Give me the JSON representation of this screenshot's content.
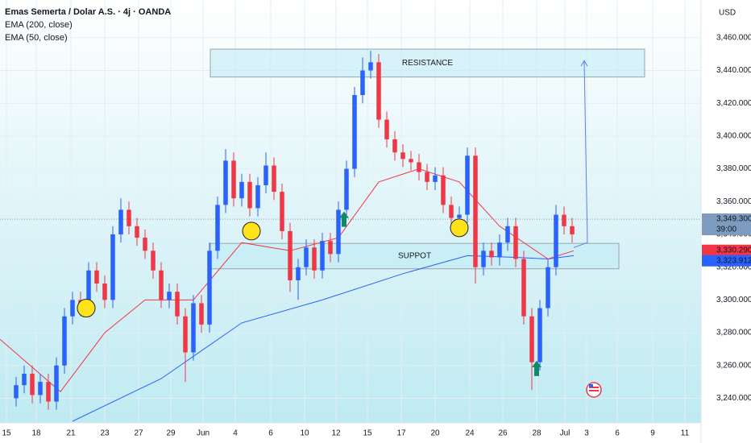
{
  "chart_data": {
    "type": "candlestick",
    "title": "Emas Semerta / Dolar A.S. · 4j · OANDA",
    "currency": "USD",
    "up_color": "#2962ff",
    "down_color": "#f23645",
    "grid": true,
    "xlim": [
      -2,
      85
    ],
    "ylim": [
      3225,
      3483
    ],
    "xticks": [
      {
        "value": -1.2,
        "label": "15"
      },
      {
        "value": 2.5,
        "label": "18"
      },
      {
        "value": 6.8,
        "label": "21"
      },
      {
        "value": 11,
        "label": "23"
      },
      {
        "value": 15.2,
        "label": "27"
      },
      {
        "value": 19.2,
        "label": "29"
      },
      {
        "value": 23.2,
        "label": "Jun"
      },
      {
        "value": 27.2,
        "label": "4"
      },
      {
        "value": 31.6,
        "label": "6"
      },
      {
        "value": 35.8,
        "label": "10"
      },
      {
        "value": 39.7,
        "label": "12"
      },
      {
        "value": 43.6,
        "label": "15"
      },
      {
        "value": 47.8,
        "label": "17"
      },
      {
        "value": 52,
        "label": "20"
      },
      {
        "value": 56.3,
        "label": "24"
      },
      {
        "value": 60.4,
        "label": "26"
      },
      {
        "value": 64.6,
        "label": "28"
      },
      {
        "value": 68.1,
        "label": "Jul"
      },
      {
        "value": 70.8,
        "label": "3"
      },
      {
        "value": 74.6,
        "label": "6"
      },
      {
        "value": 79,
        "label": "9"
      },
      {
        "value": 83,
        "label": "11"
      }
    ],
    "yticks": [
      {
        "value": 3240,
        "label": "3,240.000"
      },
      {
        "value": 3260,
        "label": "3,260.000"
      },
      {
        "value": 3280,
        "label": "3,280.000"
      },
      {
        "value": 3300,
        "label": "3,300.000"
      },
      {
        "value": 3320,
        "label": "3,320.000"
      },
      {
        "value": 3340,
        "label": "3,340.000"
      },
      {
        "value": 3360,
        "label": "3,360.000"
      },
      {
        "value": 3380,
        "label": "3,380.000"
      },
      {
        "value": 3400,
        "label": "3,400.000"
      },
      {
        "value": 3420,
        "label": "3,420.000"
      },
      {
        "value": 3440,
        "label": "3,440.000"
      },
      {
        "value": 3460,
        "label": "3,460.000"
      }
    ],
    "candles": {
      "x": [
        0,
        1,
        2,
        3,
        4,
        5,
        6,
        7,
        8,
        9,
        10,
        11,
        12,
        13,
        14,
        15,
        16,
        17,
        18,
        19,
        20,
        21,
        22,
        23,
        24,
        25,
        26,
        27,
        28,
        29,
        30,
        31,
        32,
        33,
        34,
        35,
        36,
        37,
        38,
        39,
        40,
        41,
        42,
        43,
        44,
        45,
        46,
        47,
        48,
        49,
        50,
        51,
        52,
        53,
        54,
        55,
        56,
        57,
        58,
        59,
        60,
        61,
        62,
        63,
        64,
        65,
        66,
        67,
        68,
        69
      ],
      "open": [
        3240,
        3248,
        3255,
        3242,
        3250,
        3238,
        3260,
        3290,
        3300,
        3295,
        3318,
        3310,
        3300,
        3340,
        3355,
        3345,
        3338,
        3330,
        3318,
        3300,
        3305,
        3290,
        3268,
        3298,
        3285,
        3330,
        3358,
        3385,
        3362,
        3372,
        3356,
        3370,
        3382,
        3366,
        3342,
        3312,
        3320,
        3332,
        3318,
        3336,
        3328,
        3355,
        3380,
        3425,
        3440,
        3445,
        3410,
        3398,
        3390,
        3386,
        3384,
        3378,
        3372,
        3376,
        3358,
        3350,
        3352,
        3388,
        3320,
        3330,
        3326,
        3335,
        3345,
        3325,
        3290,
        3262,
        3295,
        3320,
        3352,
        3345
      ],
      "high": [
        3253,
        3260,
        3260,
        3255,
        3255,
        3265,
        3295,
        3305,
        3305,
        3323,
        3323,
        3315,
        3345,
        3362,
        3360,
        3350,
        3343,
        3335,
        3323,
        3310,
        3310,
        3295,
        3303,
        3303,
        3335,
        3363,
        3392,
        3390,
        3377,
        3377,
        3375,
        3390,
        3387,
        3371,
        3347,
        3325,
        3337,
        3337,
        3341,
        3341,
        3360,
        3385,
        3430,
        3448,
        3452,
        3450,
        3415,
        3403,
        3395,
        3391,
        3389,
        3383,
        3381,
        3381,
        3363,
        3357,
        3393,
        3393,
        3335,
        3335,
        3340,
        3350,
        3350,
        3330,
        3295,
        3300,
        3325,
        3358,
        3357,
        3350
      ],
      "low": [
        3235,
        3243,
        3237,
        3237,
        3233,
        3233,
        3255,
        3285,
        3290,
        3290,
        3305,
        3295,
        3295,
        3335,
        3340,
        3333,
        3325,
        3313,
        3295,
        3295,
        3285,
        3250,
        3263,
        3280,
        3280,
        3325,
        3353,
        3357,
        3357,
        3351,
        3351,
        3365,
        3361,
        3337,
        3305,
        3300,
        3315,
        3313,
        3313,
        3323,
        3323,
        3350,
        3375,
        3420,
        3435,
        3405,
        3393,
        3385,
        3381,
        3379,
        3373,
        3367,
        3367,
        3353,
        3345,
        3345,
        3347,
        3310,
        3315,
        3321,
        3321,
        3330,
        3320,
        3285,
        3245,
        3257,
        3290,
        3315,
        3340,
        3335
      ],
      "close": [
        3248,
        3255,
        3242,
        3250,
        3238,
        3260,
        3290,
        3300,
        3295,
        3318,
        3310,
        3300,
        3340,
        3355,
        3345,
        3338,
        3330,
        3318,
        3300,
        3305,
        3290,
        3268,
        3298,
        3285,
        3330,
        3358,
        3385,
        3362,
        3372,
        3356,
        3370,
        3382,
        3366,
        3342,
        3312,
        3320,
        3332,
        3318,
        3336,
        3328,
        3355,
        3380,
        3425,
        3440,
        3445,
        3410,
        3398,
        3390,
        3386,
        3384,
        3378,
        3372,
        3376,
        3358,
        3350,
        3352,
        3388,
        3320,
        3330,
        3326,
        3335,
        3345,
        3325,
        3290,
        3262,
        3295,
        3320,
        3352,
        3345,
        3340
      ]
    },
    "emas": [
      {
        "name": "EMA (200, close)",
        "color": "#2962ff",
        "x": [
          7,
          18,
          28,
          38,
          48,
          56,
          62,
          66,
          69.2
        ],
        "values": [
          3226,
          3252,
          3286,
          3300,
          3316,
          3327,
          3326,
          3325,
          3327
        ]
      },
      {
        "name": "EMA (50, close)",
        "color": "#f23645",
        "x": [
          -2,
          5.5,
          11,
          16,
          22,
          28,
          34,
          40,
          45,
          50,
          55,
          60,
          66,
          69.2
        ],
        "values": [
          3276,
          3244,
          3280,
          3300,
          3300,
          3335,
          3330,
          3338,
          3372,
          3380,
          3372,
          3345,
          3325,
          3330
        ]
      }
    ],
    "zones": [
      {
        "label": "RESISTANCE",
        "x": [
          24.1,
          78
        ],
        "y": [
          3436,
          3453
        ]
      },
      {
        "label": "SUPPOT",
        "x": [
          24.1,
          74.8
        ],
        "y": [
          3319,
          3334.5
        ]
      }
    ],
    "projection": {
      "color": "#5b7ff0",
      "x": [
        69.2,
        70.9,
        70.5
      ],
      "values": [
        3332,
        3335,
        3446
      ]
    },
    "circles": {
      "color": "#ffe21a",
      "x": [
        8.7,
        29.2,
        55
      ],
      "values": [
        3295,
        3342,
        3344
      ]
    },
    "arrows": {
      "color": "#0e8a6a",
      "x": [
        40.7,
        64.6
      ],
      "values": [
        3349,
        3258
      ]
    },
    "price_labels": [
      {
        "value": 3349.3,
        "label": "3,349.300",
        "sub": "39:00",
        "color": "#7d9bbf"
      },
      {
        "value": 3330.29,
        "label": "3,330.290",
        "color": "#f23645"
      },
      {
        "value": 3323.912,
        "label": "3,323.912",
        "color": "#2962ff"
      }
    ]
  }
}
